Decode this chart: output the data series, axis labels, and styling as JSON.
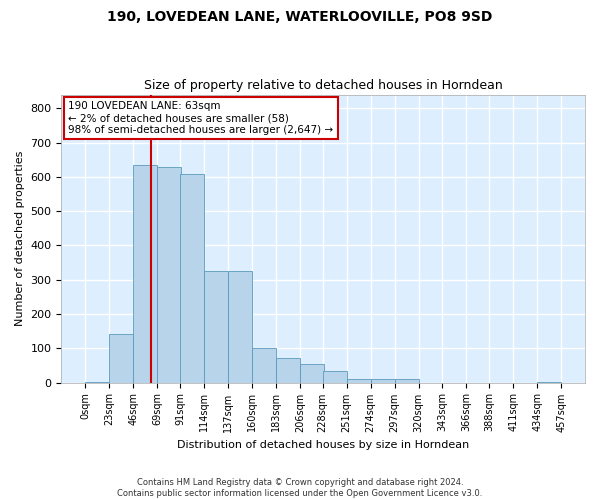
{
  "title": "190, LOVEDEAN LANE, WATERLOOVILLE, PO8 9SD",
  "subtitle": "Size of property relative to detached houses in Horndean",
  "xlabel": "Distribution of detached houses by size in Horndean",
  "ylabel": "Number of detached properties",
  "bar_color": "#b8d4ea",
  "bar_edge_color": "#5b9abf",
  "background_color": "#ddeeff",
  "grid_color": "#ffffff",
  "vline_x": 63,
  "vline_color": "#cc0000",
  "annotation_text": "190 LOVEDEAN LANE: 63sqm\n← 2% of detached houses are smaller (58)\n98% of semi-detached houses are larger (2,647) →",
  "annotation_box_facecolor": "#ffffff",
  "annotation_box_edgecolor": "#cc0000",
  "bins_left": [
    0,
    23,
    46,
    69,
    91,
    114,
    137,
    160,
    183,
    206,
    228,
    251,
    274,
    297,
    320,
    343,
    366,
    388,
    411,
    434
  ],
  "bin_width": 23,
  "bar_heights": [
    2,
    143,
    635,
    630,
    608,
    325,
    325,
    100,
    73,
    55,
    35,
    10,
    10,
    10,
    0,
    0,
    0,
    0,
    0,
    2
  ],
  "ylim": [
    0,
    840
  ],
  "yticks": [
    0,
    100,
    200,
    300,
    400,
    500,
    600,
    700,
    800
  ],
  "xtick_labels": [
    "0sqm",
    "23sqm",
    "46sqm",
    "69sqm",
    "91sqm",
    "114sqm",
    "137sqm",
    "160sqm",
    "183sqm",
    "206sqm",
    "228sqm",
    "251sqm",
    "274sqm",
    "297sqm",
    "320sqm",
    "343sqm",
    "366sqm",
    "388sqm",
    "411sqm",
    "434sqm",
    "457sqm"
  ],
  "footer_line1": "Contains HM Land Registry data © Crown copyright and database right 2024.",
  "footer_line2": "Contains public sector information licensed under the Open Government Licence v3.0."
}
